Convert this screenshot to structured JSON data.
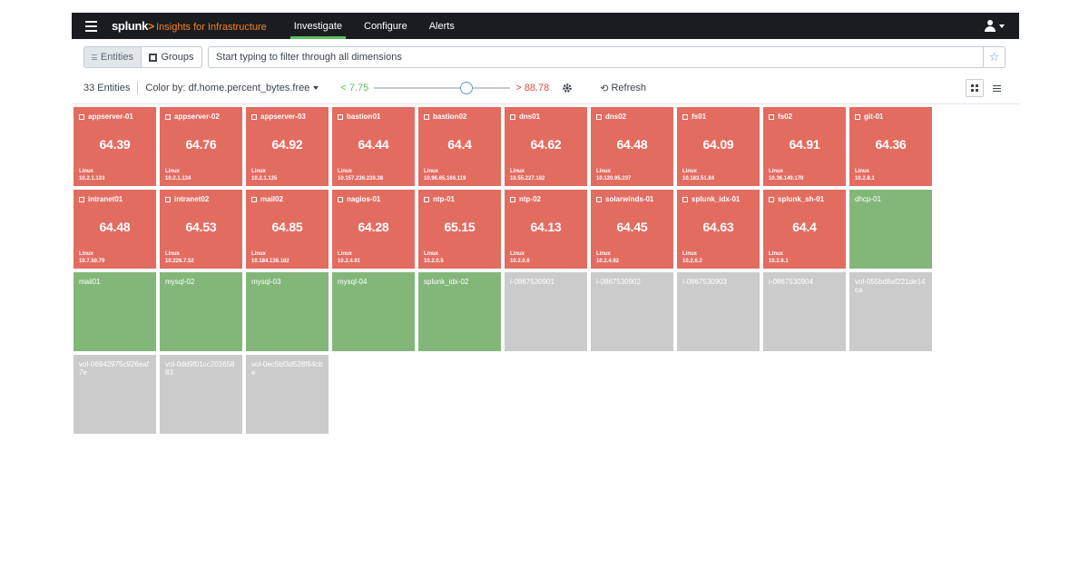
{
  "nav": {
    "brand": "splunk",
    "brand_chevron": ">",
    "app_name": "Insights for Infrastructure",
    "items": [
      {
        "label": "Investigate",
        "active": true
      },
      {
        "label": "Configure",
        "active": false
      },
      {
        "label": "Alerts",
        "active": false
      }
    ]
  },
  "filter": {
    "entities_label": "Entities",
    "groups_label": "Groups",
    "search_placeholder": "Start typing to filter through all dimensions",
    "star_icon": "star-icon"
  },
  "controls": {
    "count": "33 Entities",
    "color_by": "Color by: df.home.percent_bytes.free",
    "low": "< 7.75",
    "high": "> 88.78",
    "slider_level": 0.7,
    "refresh": "Refresh"
  },
  "colors": {
    "critical": "#e36c61",
    "normal": "#83b77a",
    "inactive": "#cbcbcb",
    "accent_green": "#5cc05c",
    "accent_red": "#dc4e41"
  },
  "tiles": [
    {
      "name": "appserver-01",
      "metric": "64.39",
      "os": "Linux",
      "ip": "10.2.1.133",
      "status": "critical"
    },
    {
      "name": "appserver-02",
      "metric": "64.76",
      "os": "Linux",
      "ip": "10.2.1.134",
      "status": "critical"
    },
    {
      "name": "appserver-03",
      "metric": "64.92",
      "os": "Linux",
      "ip": "10.2.1.135",
      "status": "critical"
    },
    {
      "name": "bastion01",
      "metric": "64.44",
      "os": "Linux",
      "ip": "10.157.236.239.38",
      "status": "critical"
    },
    {
      "name": "bastion02",
      "metric": "64.4",
      "os": "Linux",
      "ip": "10.96.65.166.119",
      "status": "critical"
    },
    {
      "name": "dns01",
      "metric": "64.62",
      "os": "Linux",
      "ip": "10.55.227.182",
      "status": "critical"
    },
    {
      "name": "dns02",
      "metric": "64.48",
      "os": "Linux",
      "ip": "10.120.95.237",
      "status": "critical"
    },
    {
      "name": "fs01",
      "metric": "64.09",
      "os": "Linux",
      "ip": "10.183.51.84",
      "status": "critical"
    },
    {
      "name": "fs02",
      "metric": "64.91",
      "os": "Linux",
      "ip": "10.36.149.178",
      "status": "critical"
    },
    {
      "name": "git-01",
      "metric": "64.36",
      "os": "Linux",
      "ip": "10.2.8.1",
      "status": "critical"
    },
    {
      "name": "intranet01",
      "metric": "64.48",
      "os": "Linux",
      "ip": "10.7.50.79",
      "status": "critical"
    },
    {
      "name": "intranet02",
      "metric": "64.53",
      "os": "Linux",
      "ip": "10.226.7.52",
      "status": "critical"
    },
    {
      "name": "mail02",
      "metric": "64.85",
      "os": "Linux",
      "ip": "10.184.136.182",
      "status": "critical"
    },
    {
      "name": "nagios-01",
      "metric": "64.28",
      "os": "Linux",
      "ip": "10.2.4.91",
      "status": "critical"
    },
    {
      "name": "ntp-01",
      "metric": "65.15",
      "os": "Linux",
      "ip": "10.2.0.5",
      "status": "critical"
    },
    {
      "name": "ntp-02",
      "metric": "64.13",
      "os": "Linux",
      "ip": "10.2.0.6",
      "status": "critical"
    },
    {
      "name": "solarwinds-01",
      "metric": "64.45",
      "os": "Linux",
      "ip": "10.2.4.92",
      "status": "critical"
    },
    {
      "name": "splunk_idx-01",
      "metric": "64.63",
      "os": "Linux",
      "ip": "10.2.6.2",
      "status": "critical"
    },
    {
      "name": "splunk_sh-01",
      "metric": "64.4",
      "os": "Linux",
      "ip": "10.2.6.1",
      "status": "critical"
    },
    {
      "name": "dhcp-01",
      "status": "normal"
    },
    {
      "name": "mail01",
      "status": "normal"
    },
    {
      "name": "mysql-02",
      "status": "normal"
    },
    {
      "name": "mysql-03",
      "status": "normal"
    },
    {
      "name": "mysql-04",
      "status": "normal"
    },
    {
      "name": "splunk_idx-02",
      "status": "normal"
    },
    {
      "name": "i-0867530901",
      "status": "inactive"
    },
    {
      "name": "i-0867530902",
      "status": "inactive"
    },
    {
      "name": "i-0867530903",
      "status": "inactive"
    },
    {
      "name": "i-0867530904",
      "status": "inactive"
    },
    {
      "name": "vol-055bd8af221de14ca",
      "status": "inactive"
    },
    {
      "name": "vol-06942975c926eaf7e",
      "status": "inactive"
    },
    {
      "name": "vol-0dd9f01cc20165883",
      "status": "inactive"
    },
    {
      "name": "vol-0ec5bf3d528f64cbe",
      "status": "inactive"
    }
  ]
}
